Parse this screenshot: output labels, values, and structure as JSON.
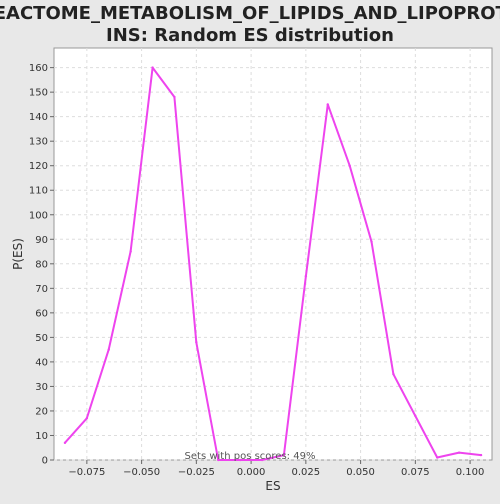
{
  "chart_data": {
    "type": "line",
    "title_lines": [
      "REACTOME_METABOLISM_OF_LIPIDS_AND_LIPOPROTE",
      "INS: Random ES distribution"
    ],
    "xlabel": "ES",
    "ylabel": "P(ES)",
    "xlim": [
      -0.09,
      0.11
    ],
    "ylim": [
      0,
      168
    ],
    "x_ticks": [
      -0.075,
      -0.05,
      -0.025,
      0.0,
      0.025,
      0.05,
      0.075,
      0.1
    ],
    "x_tick_labels": [
      "−0.075",
      "−0.050",
      "−0.025",
      "0.000",
      "0.025",
      "0.050",
      "0.075",
      "0.100"
    ],
    "y_ticks": [
      0,
      10,
      20,
      30,
      40,
      50,
      60,
      70,
      80,
      90,
      100,
      110,
      120,
      130,
      140,
      150,
      160
    ],
    "y_tick_labels": [
      "0",
      "10",
      "20",
      "30",
      "40",
      "50",
      "60",
      "70",
      "80",
      "90",
      "100",
      "110",
      "120",
      "130",
      "140",
      "150",
      "160"
    ],
    "grid": true,
    "series": [
      {
        "color": "#ee44ee",
        "x": [
          -0.085,
          -0.075,
          -0.065,
          -0.055,
          -0.045,
          -0.035,
          -0.025,
          -0.015,
          -0.005,
          0.005,
          0.015,
          0.025,
          0.035,
          0.045,
          0.055,
          0.065,
          0.075,
          0.085,
          0.095,
          0.105
        ],
        "y": [
          7,
          17,
          45,
          85,
          160,
          148,
          48,
          0,
          0,
          0,
          2,
          75,
          145,
          120,
          89,
          35,
          18,
          1,
          3,
          2
        ]
      }
    ],
    "annotation": "Sets with pos scores: 49%"
  }
}
